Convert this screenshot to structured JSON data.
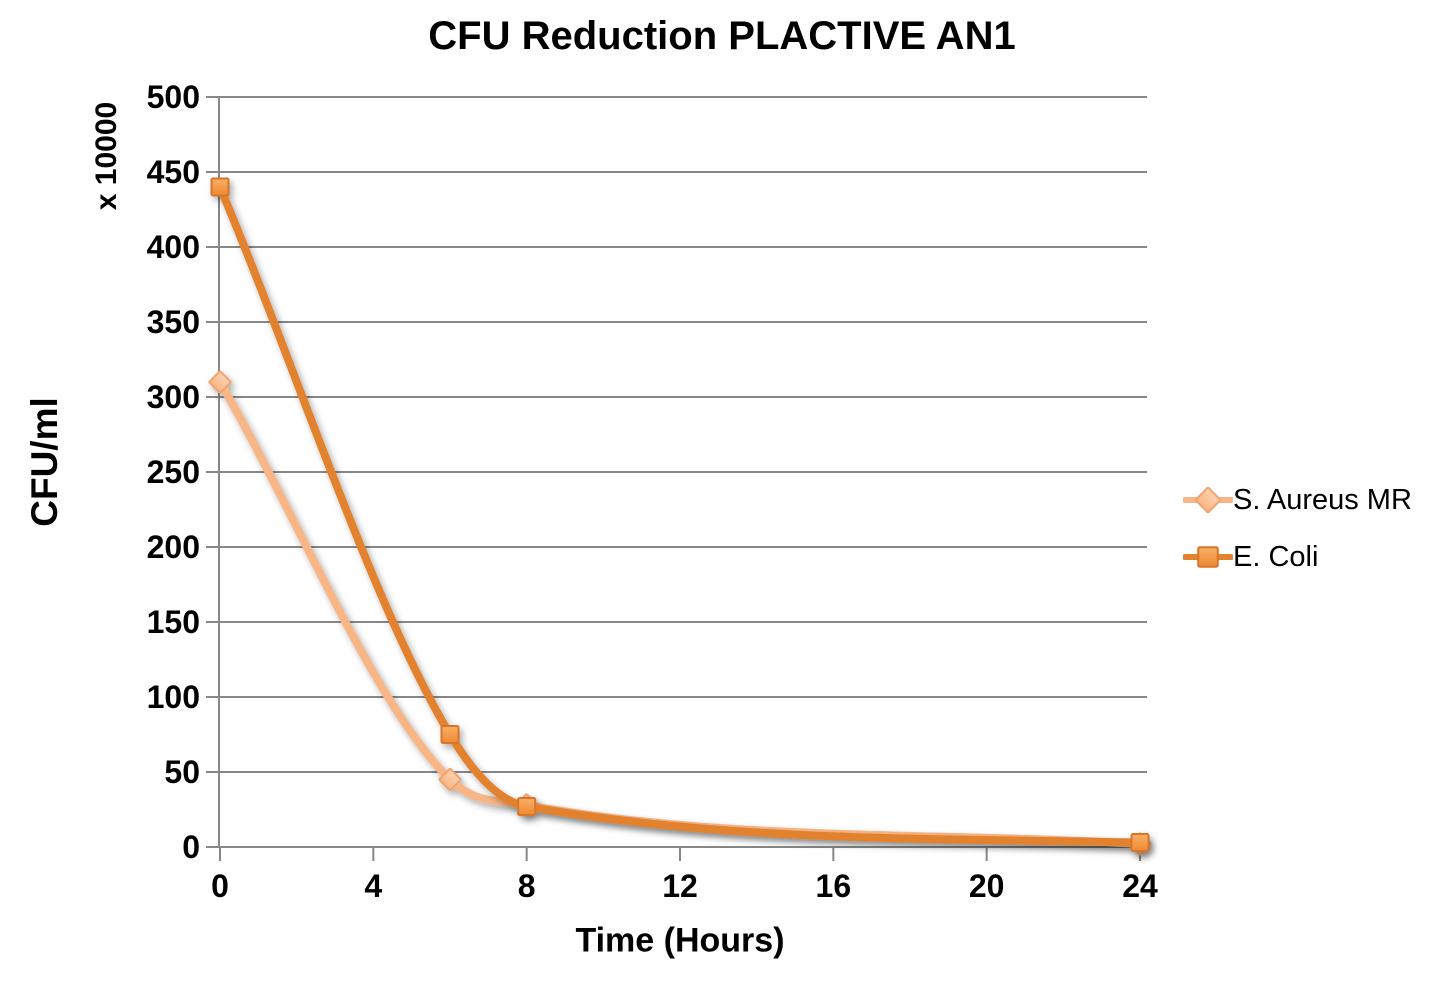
{
  "page": {
    "background": "#FFFFFF"
  },
  "chart_data": {
    "type": "line",
    "title": "CFU Reduction PLACTIVE AN1",
    "xlabel": "Time (Hours)",
    "ylabel": "CFU/ml",
    "y_unit_multiplier": "x 10000",
    "x": [
      0,
      6,
      8,
      24
    ],
    "series": [
      {
        "name": "S. Aureus MR",
        "marker": "diamond",
        "line_color": "#F8B585",
        "marker_fill_top": "#FBD2AC",
        "marker_fill_bottom": "#F8B684",
        "marker_stroke": "#F0A270",
        "values": [
          310,
          45,
          28,
          2
        ]
      },
      {
        "name": "E. Coli",
        "marker": "square",
        "line_color": "#E2822E",
        "marker_fill_top": "#F9B066",
        "marker_fill_bottom": "#ED8931",
        "marker_stroke": "#D9752A",
        "values": [
          440,
          75,
          27,
          3
        ]
      }
    ],
    "x_ticks": [
      0,
      4,
      8,
      12,
      16,
      20,
      24
    ],
    "y_ticks": [
      0,
      50,
      100,
      150,
      200,
      250,
      300,
      350,
      400,
      450,
      500
    ],
    "xlim": [
      0,
      24
    ],
    "ylim": [
      0,
      500
    ],
    "grid": "horizontal",
    "grid_color": "#878787",
    "axis_color": "#878787",
    "text_color": "#000000",
    "legend_position": "right",
    "smoothed_lines": true
  }
}
